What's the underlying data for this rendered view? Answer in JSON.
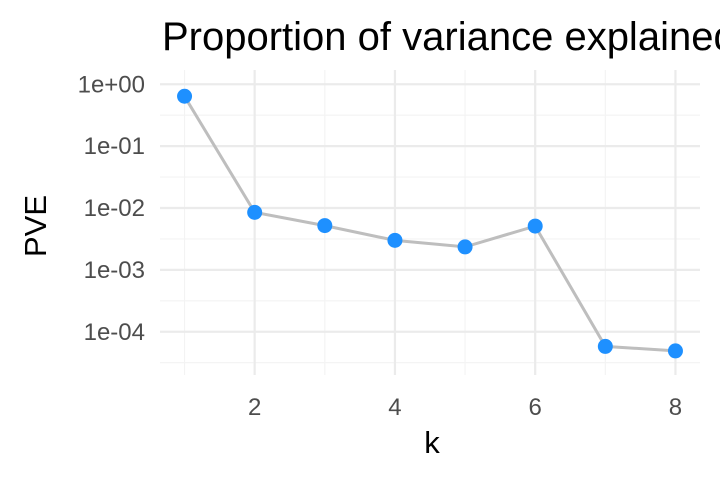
{
  "chart_data": {
    "type": "line",
    "title": "Proportion of variance explained",
    "xlabel": "k",
    "ylabel": "PVE",
    "x": [
      1,
      2,
      3,
      4,
      5,
      6,
      7,
      8
    ],
    "y": [
      0.64,
      0.0085,
      0.0052,
      0.003,
      0.00235,
      0.0051,
      5.8e-05,
      4.9e-05
    ],
    "xlim": [
      0.65,
      8.35
    ],
    "ylim": [
      2e-05,
      1.7
    ],
    "y_scale": "log10",
    "x_ticks": [
      2,
      4,
      6,
      8
    ],
    "x_tick_labels": [
      "2",
      "4",
      "6",
      "8"
    ],
    "y_ticks": [
      1,
      0.1,
      0.01,
      0.001,
      0.0001
    ],
    "y_tick_labels": [
      "1e+00",
      "1e-01",
      "1e-02",
      "1e-03",
      "1e-04"
    ],
    "grid": true,
    "legend": "none",
    "colors": {
      "point": "#1e90ff",
      "line": "#bebebe",
      "grid": "#ebebeb",
      "tick_text": "#4d4d4d"
    }
  }
}
